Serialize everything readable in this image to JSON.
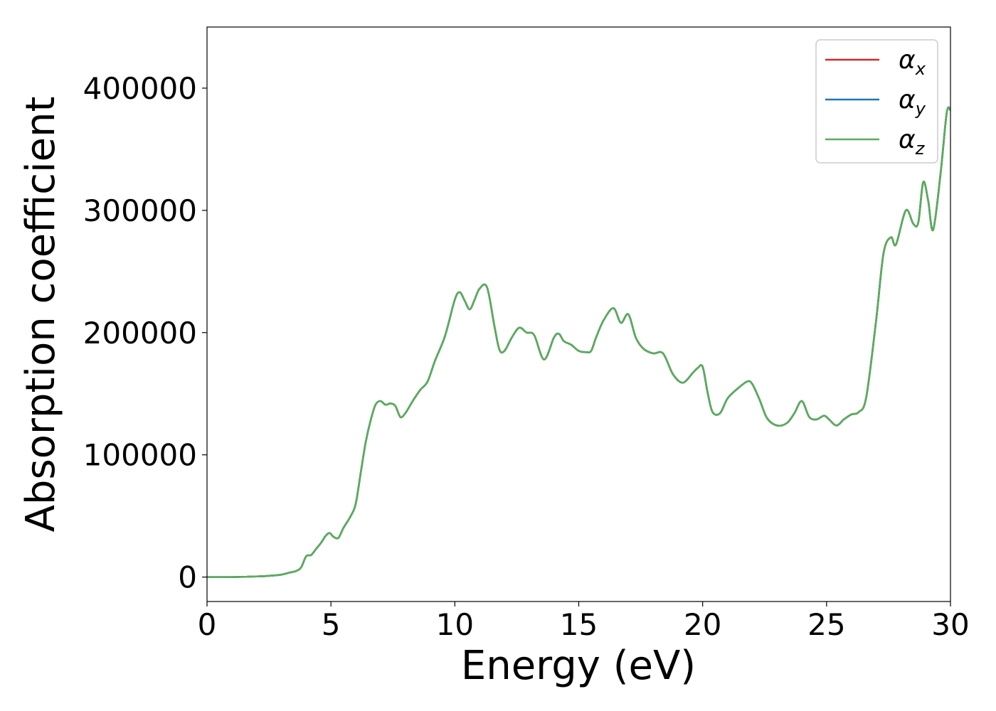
{
  "chart_data": {
    "type": "line",
    "title": "",
    "xlabel": "Energy (eV)",
    "ylabel": "Absorption coefficient",
    "xlim": [
      0,
      30
    ],
    "ylim": [
      -20000,
      450000
    ],
    "xticks": [
      0,
      5,
      10,
      15,
      20,
      25,
      30
    ],
    "xtick_labels": [
      "0",
      "5",
      "10",
      "15",
      "20",
      "25",
      "30"
    ],
    "yticks": [
      0,
      100000,
      200000,
      300000,
      400000
    ],
    "ytick_labels": [
      "0",
      "100000",
      "200000",
      "300000",
      "400000"
    ],
    "grid": false,
    "legend_position": "top-right",
    "x": [
      0,
      1,
      2,
      2.5,
      3,
      3.3,
      3.6,
      3.8,
      4.0,
      4.2,
      4.4,
      4.6,
      4.8,
      4.95,
      5.1,
      5.3,
      5.5,
      5.8,
      6.0,
      6.2,
      6.4,
      6.6,
      6.8,
      7.0,
      7.2,
      7.4,
      7.6,
      7.8,
      8.0,
      8.3,
      8.6,
      8.9,
      9.2,
      9.6,
      10.0,
      10.2,
      10.4,
      10.6,
      10.8,
      11.0,
      11.3,
      11.6,
      11.8,
      12.0,
      12.3,
      12.6,
      12.9,
      13.2,
      13.6,
      14.0,
      14.2,
      14.4,
      14.7,
      15.0,
      15.3,
      15.5,
      15.7,
      16.0,
      16.4,
      16.7,
      17.0,
      17.3,
      17.6,
      18.0,
      18.4,
      18.8,
      19.2,
      19.6,
      19.8,
      20.0,
      20.2,
      20.4,
      20.7,
      21.0,
      21.4,
      21.8,
      22.0,
      22.3,
      22.6,
      23.0,
      23.4,
      23.7,
      24.0,
      24.3,
      24.6,
      24.9,
      25.1,
      25.4,
      25.7,
      26.0,
      26.3,
      26.6,
      27.0,
      27.3,
      27.6,
      27.8,
      28.2,
      28.5,
      28.7,
      28.9,
      29.1,
      29.3,
      29.6,
      29.85,
      30.0
    ],
    "series": [
      {
        "name": "αx",
        "color": "#d62728",
        "values": [
          0,
          0,
          500,
          1000,
          2000,
          3500,
          5000,
          8000,
          17000,
          18000,
          23000,
          28000,
          34000,
          36000,
          33000,
          32000,
          40000,
          50000,
          60000,
          85000,
          110000,
          128000,
          141000,
          144000,
          141000,
          142000,
          140000,
          131000,
          134000,
          144000,
          153000,
          160000,
          177000,
          197000,
          227000,
          233000,
          226000,
          219000,
          227000,
          236000,
          237000,
          205000,
          186000,
          185000,
          196000,
          204000,
          200000,
          198000,
          178000,
          196000,
          199000,
          193000,
          190000,
          185000,
          184000,
          185000,
          196000,
          210000,
          220000,
          208000,
          215000,
          196000,
          187000,
          183000,
          183000,
          166000,
          159000,
          167000,
          171000,
          172000,
          151000,
          135000,
          134000,
          146000,
          154000,
          160000,
          158000,
          145000,
          130000,
          124000,
          126000,
          134000,
          144000,
          131000,
          129000,
          132000,
          129000,
          124000,
          129000,
          133000,
          135000,
          147000,
          210000,
          265000,
          278000,
          272000,
          300000,
          289000,
          290000,
          323000,
          308000,
          284000,
          330000,
          380000,
          382000
        ]
      },
      {
        "name": "αy",
        "color": "#1f77b4",
        "values": [
          0,
          0,
          500,
          1000,
          2000,
          3500,
          5000,
          8000,
          17000,
          18000,
          23000,
          28000,
          34000,
          36000,
          33000,
          32000,
          40000,
          50000,
          60000,
          85000,
          110000,
          128000,
          141000,
          144000,
          141000,
          142000,
          140000,
          131000,
          134000,
          144000,
          153000,
          160000,
          177000,
          197000,
          227000,
          233000,
          226000,
          219000,
          227000,
          236000,
          237000,
          205000,
          186000,
          185000,
          196000,
          204000,
          200000,
          198000,
          178000,
          196000,
          199000,
          193000,
          190000,
          185000,
          184000,
          185000,
          196000,
          210000,
          220000,
          208000,
          215000,
          196000,
          187000,
          183000,
          183000,
          166000,
          159000,
          167000,
          171000,
          172000,
          151000,
          135000,
          134000,
          146000,
          154000,
          160000,
          158000,
          145000,
          130000,
          124000,
          126000,
          134000,
          144000,
          131000,
          129000,
          132000,
          129000,
          124000,
          129000,
          133000,
          135000,
          147000,
          210000,
          265000,
          278000,
          272000,
          300000,
          289000,
          290000,
          323000,
          308000,
          284000,
          330000,
          380000,
          382000
        ]
      },
      {
        "name": "αz",
        "color": "#5aad5a",
        "values": [
          0,
          0,
          500,
          1000,
          2000,
          3500,
          5000,
          8000,
          17000,
          18000,
          23000,
          28000,
          34000,
          36000,
          33000,
          32000,
          40000,
          50000,
          60000,
          85000,
          110000,
          128000,
          141000,
          144000,
          141000,
          142000,
          140000,
          131000,
          134000,
          144000,
          153000,
          160000,
          177000,
          197000,
          227000,
          233000,
          226000,
          219000,
          227000,
          236000,
          237000,
          205000,
          186000,
          185000,
          196000,
          204000,
          200000,
          198000,
          178000,
          196000,
          199000,
          193000,
          190000,
          185000,
          184000,
          185000,
          196000,
          210000,
          220000,
          208000,
          215000,
          196000,
          187000,
          183000,
          183000,
          166000,
          159000,
          167000,
          171000,
          172000,
          151000,
          135000,
          134000,
          146000,
          154000,
          160000,
          158000,
          145000,
          130000,
          124000,
          126000,
          134000,
          144000,
          131000,
          129000,
          132000,
          129000,
          124000,
          129000,
          133000,
          135000,
          147000,
          210000,
          265000,
          278000,
          272000,
          300000,
          289000,
          290000,
          323000,
          308000,
          284000,
          330000,
          380000,
          382000
        ]
      }
    ],
    "legend": [
      {
        "symbol": "α",
        "sub": "x",
        "color": "#d62728"
      },
      {
        "symbol": "α",
        "sub": "y",
        "color": "#1f77b4"
      },
      {
        "symbol": "α",
        "sub": "z",
        "color": "#5aad5a"
      }
    ]
  }
}
